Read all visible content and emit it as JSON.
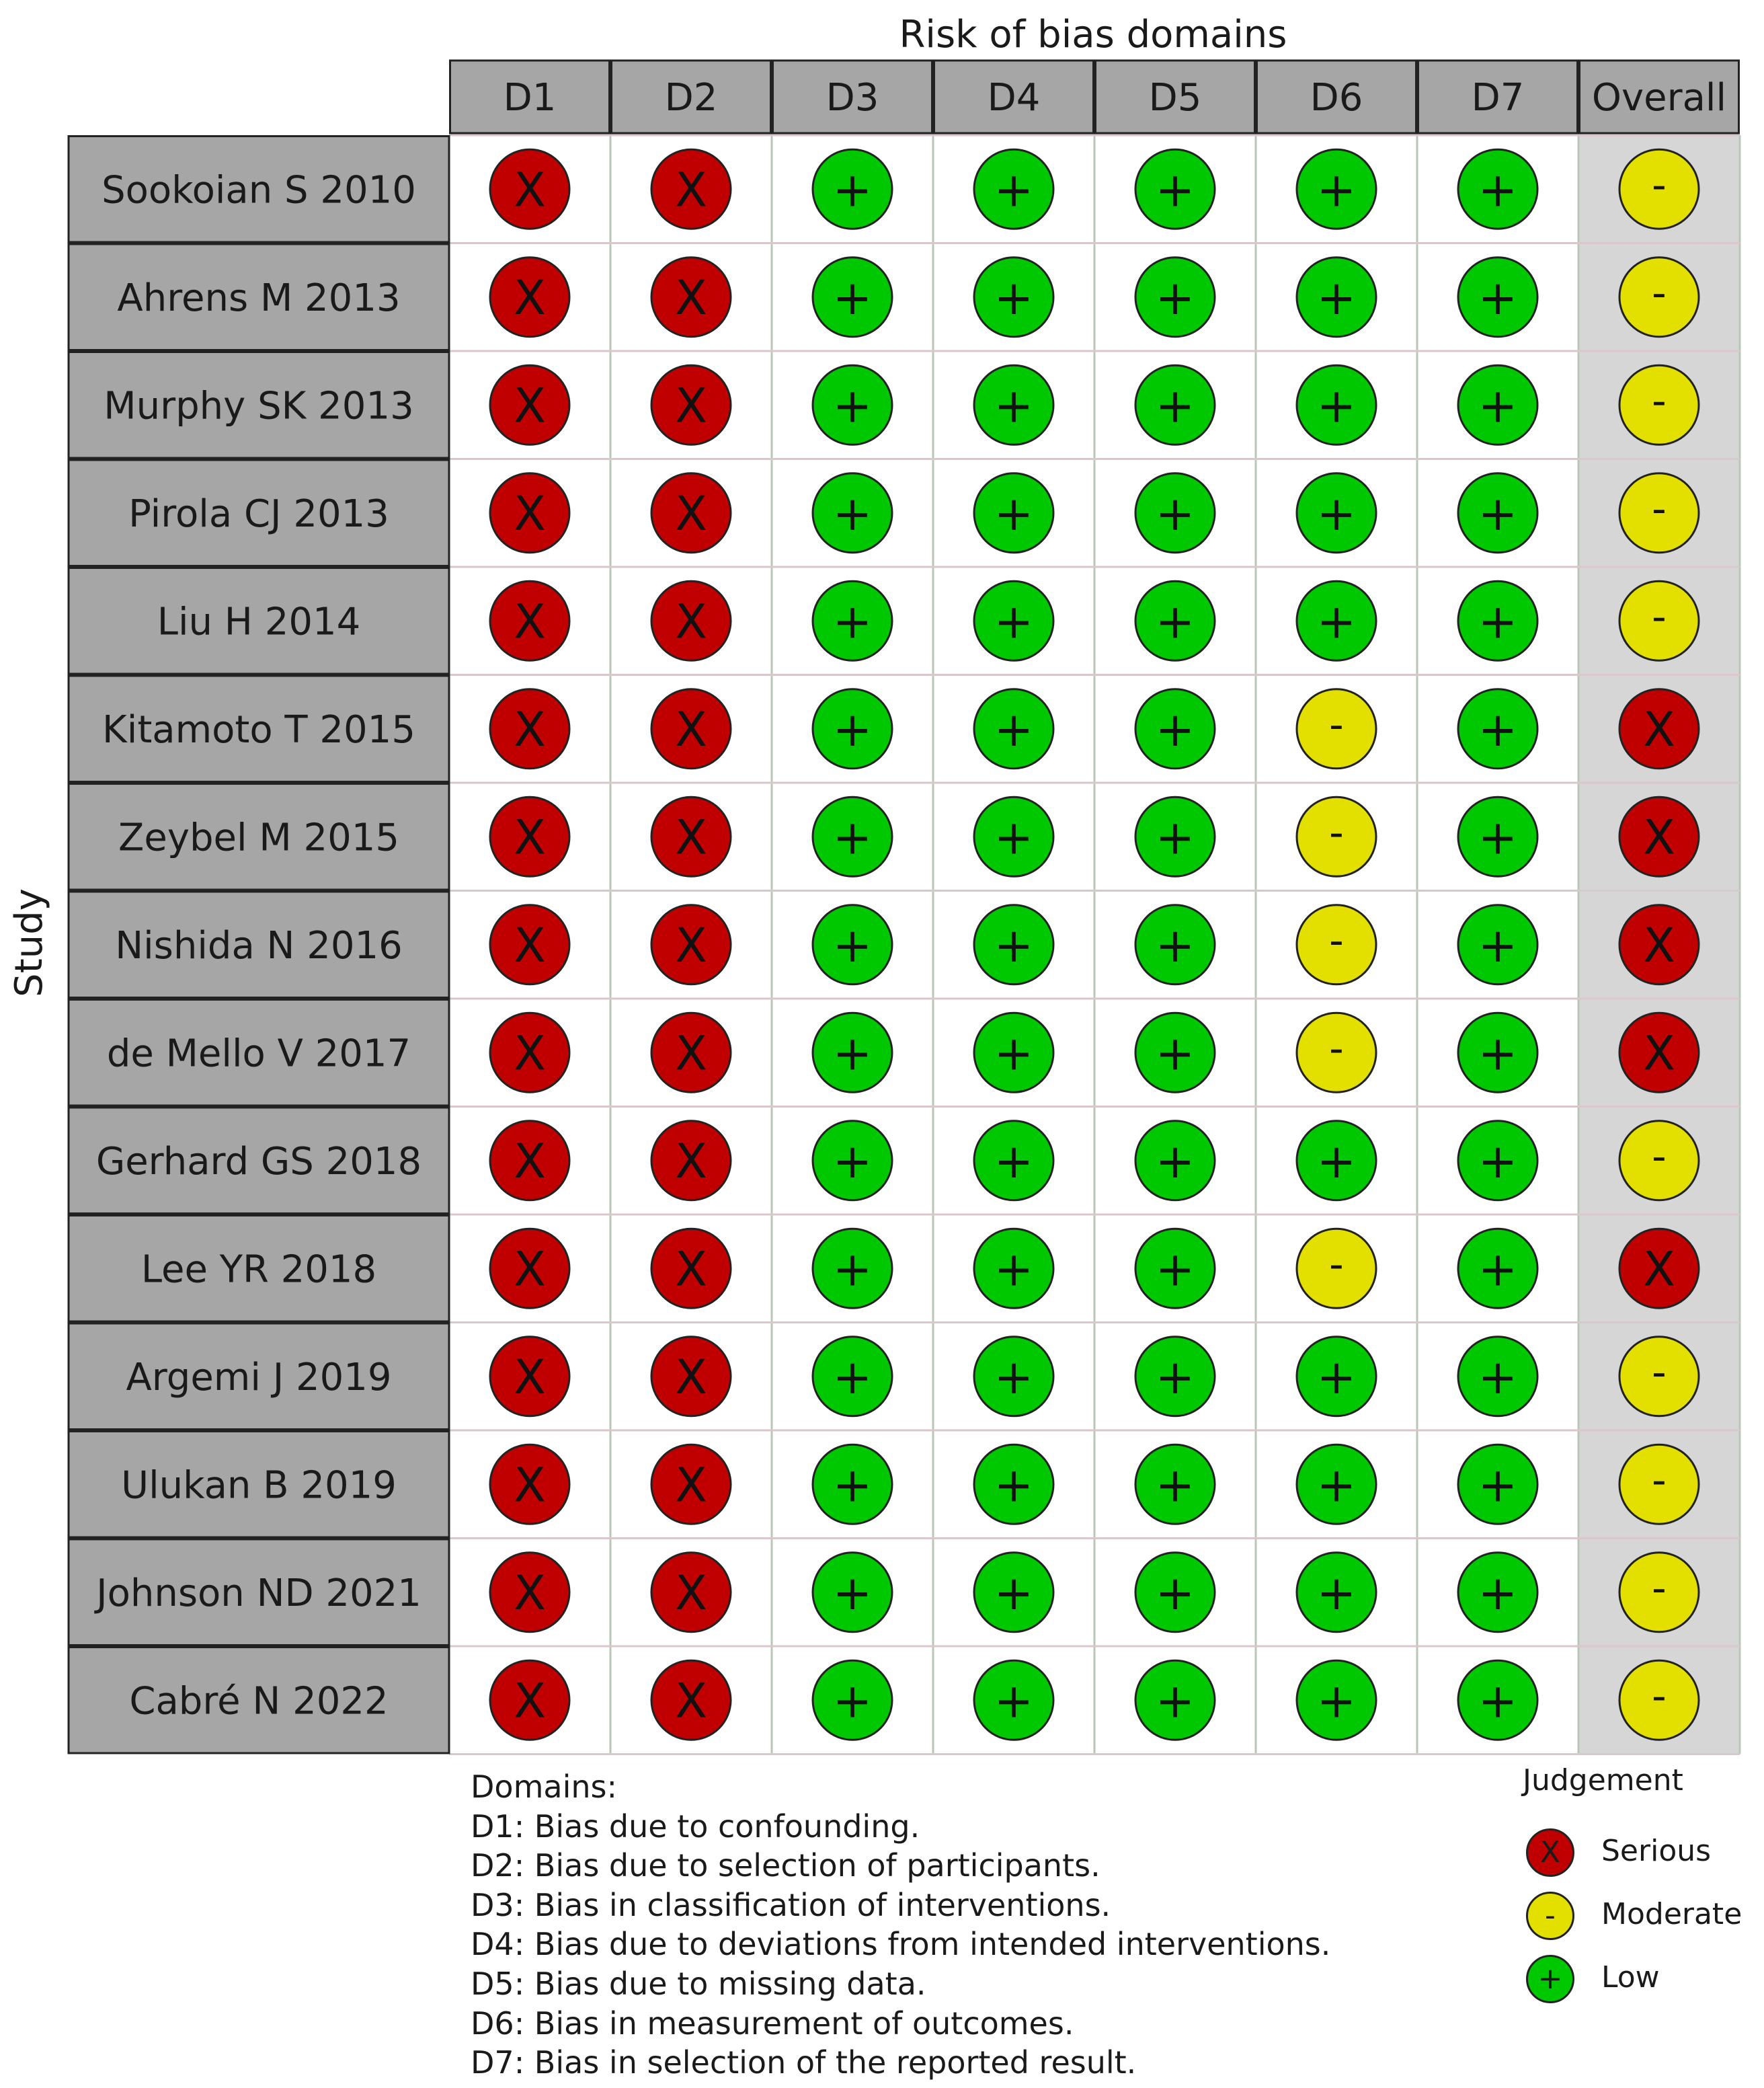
{
  "chart_data": {
    "type": "table",
    "title": "Risk of bias domains",
    "ylabel": "Study",
    "columns": [
      "D1",
      "D2",
      "D3",
      "D4",
      "D5",
      "D6",
      "D7",
      "Overall"
    ],
    "rows": [
      {
        "study": "Sookoian S 2010",
        "judgements": [
          "Serious",
          "Serious",
          "Low",
          "Low",
          "Low",
          "Low",
          "Low",
          "Moderate"
        ]
      },
      {
        "study": "Ahrens M 2013",
        "judgements": [
          "Serious",
          "Serious",
          "Low",
          "Low",
          "Low",
          "Low",
          "Low",
          "Moderate"
        ]
      },
      {
        "study": "Murphy SK 2013",
        "judgements": [
          "Serious",
          "Serious",
          "Low",
          "Low",
          "Low",
          "Low",
          "Low",
          "Moderate"
        ]
      },
      {
        "study": "Pirola CJ 2013",
        "judgements": [
          "Serious",
          "Serious",
          "Low",
          "Low",
          "Low",
          "Low",
          "Low",
          "Moderate"
        ]
      },
      {
        "study": "Liu H 2014",
        "judgements": [
          "Serious",
          "Serious",
          "Low",
          "Low",
          "Low",
          "Low",
          "Low",
          "Moderate"
        ]
      },
      {
        "study": "Kitamoto T 2015",
        "judgements": [
          "Serious",
          "Serious",
          "Low",
          "Low",
          "Low",
          "Moderate",
          "Low",
          "Serious"
        ]
      },
      {
        "study": "Zeybel M 2015",
        "judgements": [
          "Serious",
          "Serious",
          "Low",
          "Low",
          "Low",
          "Moderate",
          "Low",
          "Serious"
        ]
      },
      {
        "study": "Nishida N 2016",
        "judgements": [
          "Serious",
          "Serious",
          "Low",
          "Low",
          "Low",
          "Moderate",
          "Low",
          "Serious"
        ]
      },
      {
        "study": "de Mello V 2017",
        "judgements": [
          "Serious",
          "Serious",
          "Low",
          "Low",
          "Low",
          "Moderate",
          "Low",
          "Serious"
        ]
      },
      {
        "study": "Gerhard GS 2018",
        "judgements": [
          "Serious",
          "Serious",
          "Low",
          "Low",
          "Low",
          "Low",
          "Low",
          "Moderate"
        ]
      },
      {
        "study": "Lee YR 2018",
        "judgements": [
          "Serious",
          "Serious",
          "Low",
          "Low",
          "Low",
          "Moderate",
          "Low",
          "Serious"
        ]
      },
      {
        "study": "Argemi J 2019",
        "judgements": [
          "Serious",
          "Serious",
          "Low",
          "Low",
          "Low",
          "Low",
          "Low",
          "Moderate"
        ]
      },
      {
        "study": "Ulukan B 2019",
        "judgements": [
          "Serious",
          "Serious",
          "Low",
          "Low",
          "Low",
          "Low",
          "Low",
          "Moderate"
        ]
      },
      {
        "study": "Johnson ND 2021",
        "judgements": [
          "Serious",
          "Serious",
          "Low",
          "Low",
          "Low",
          "Low",
          "Low",
          "Moderate"
        ]
      },
      {
        "study": "Cabré N 2022",
        "judgements": [
          "Serious",
          "Serious",
          "Low",
          "Low",
          "Low",
          "Low",
          "Low",
          "Moderate"
        ]
      }
    ],
    "domains_heading": "Domains:",
    "domain_descriptions": [
      "D1: Bias due to confounding.",
      "D2: Bias due to selection of participants.",
      "D3: Bias in classification of interventions.",
      "D4: Bias due to deviations from intended interventions.",
      "D5: Bias due to missing data.",
      "D6: Bias in measurement of outcomes.",
      "D7: Bias in selection of the reported result."
    ],
    "legend": {
      "title": "Judgement",
      "placement": "bottom-right",
      "items": [
        {
          "label": "Serious",
          "symbol": "X",
          "color": "#c00000"
        },
        {
          "label": "Moderate",
          "symbol": "-",
          "color": "#e3e000"
        },
        {
          "label": "Low",
          "symbol": "+",
          "color": "#00c800"
        }
      ]
    }
  }
}
